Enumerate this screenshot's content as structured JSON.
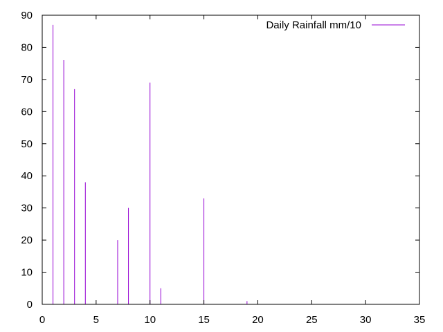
{
  "chart_data": {
    "type": "impulse",
    "title": "",
    "xlabel": "",
    "ylabel": "",
    "xlim": [
      0,
      35
    ],
    "ylim": [
      0,
      90
    ],
    "xticks": [
      0,
      5,
      10,
      15,
      20,
      25,
      30,
      35
    ],
    "yticks": [
      0,
      10,
      20,
      30,
      40,
      50,
      60,
      70,
      80,
      90
    ],
    "grid": false,
    "legend_position": "top-right",
    "series": [
      {
        "name": "Daily Rainfall mm/10",
        "color": "#9400d3",
        "x": [
          1,
          2,
          3,
          4,
          5,
          6,
          7,
          8,
          9,
          10,
          11,
          12,
          13,
          14,
          15,
          16,
          17,
          18,
          19,
          20
        ],
        "y": [
          87,
          76,
          67,
          38,
          0,
          0,
          20,
          30,
          0,
          69,
          5,
          0,
          0,
          0,
          33,
          0,
          0,
          0,
          1,
          0
        ]
      }
    ]
  }
}
